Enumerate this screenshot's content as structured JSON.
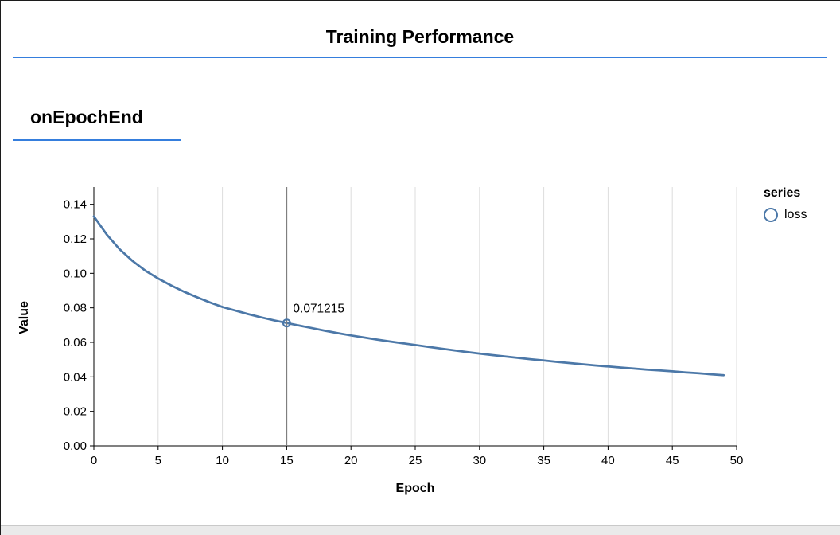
{
  "panel": {
    "title": "Training Performance",
    "section_title": "onEpochEnd"
  },
  "colors": {
    "accent_blue": "#357edd",
    "series_blue": "#4c78a8",
    "grid": "#dddddd",
    "rule": "#7f7f7f",
    "axis": "#000000"
  },
  "chart_data": {
    "type": "line",
    "title": "",
    "xlabel": "Epoch",
    "ylabel": "Value",
    "xlim": [
      0,
      50
    ],
    "ylim": [
      0,
      0.15
    ],
    "x_ticks": [
      0,
      5,
      10,
      15,
      20,
      25,
      30,
      35,
      40,
      45,
      50
    ],
    "y_ticks": [
      "0.00",
      "0.02",
      "0.04",
      "0.06",
      "0.08",
      "0.10",
      "0.12",
      "0.14"
    ],
    "grid": "vertical-only",
    "legend": {
      "position": "right",
      "title": "series",
      "entries": [
        {
          "label": "loss",
          "color": "#4c78a8"
        }
      ]
    },
    "hover": {
      "epoch": 15,
      "value": 0.071215,
      "label": "0.071215"
    },
    "series": [
      {
        "name": "loss",
        "x": [
          0,
          1,
          2,
          3,
          4,
          5,
          6,
          7,
          8,
          9,
          10,
          11,
          12,
          13,
          14,
          15,
          16,
          17,
          18,
          19,
          20,
          21,
          22,
          23,
          24,
          25,
          26,
          27,
          28,
          29,
          30,
          31,
          32,
          33,
          34,
          35,
          36,
          37,
          38,
          39,
          40,
          41,
          42,
          43,
          44,
          45,
          46,
          47,
          48,
          49
        ],
        "values": [
          0.133,
          0.1225,
          0.114,
          0.1072,
          0.1016,
          0.097,
          0.093,
          0.0894,
          0.0862,
          0.0832,
          0.0805,
          0.0784,
          0.0764,
          0.0745,
          0.0728,
          0.071215,
          0.0697,
          0.0682,
          0.0667,
          0.0653,
          0.064,
          0.0628,
          0.0616,
          0.0605,
          0.0595,
          0.0585,
          0.0574,
          0.0564,
          0.0554,
          0.0544,
          0.0535,
          0.0526,
          0.0518,
          0.051,
          0.0502,
          0.0495,
          0.0487,
          0.048,
          0.0473,
          0.0466,
          0.046,
          0.0454,
          0.0448,
          0.0442,
          0.0437,
          0.0432,
          0.0426,
          0.0421,
          0.0415,
          0.041
        ]
      }
    ]
  }
}
